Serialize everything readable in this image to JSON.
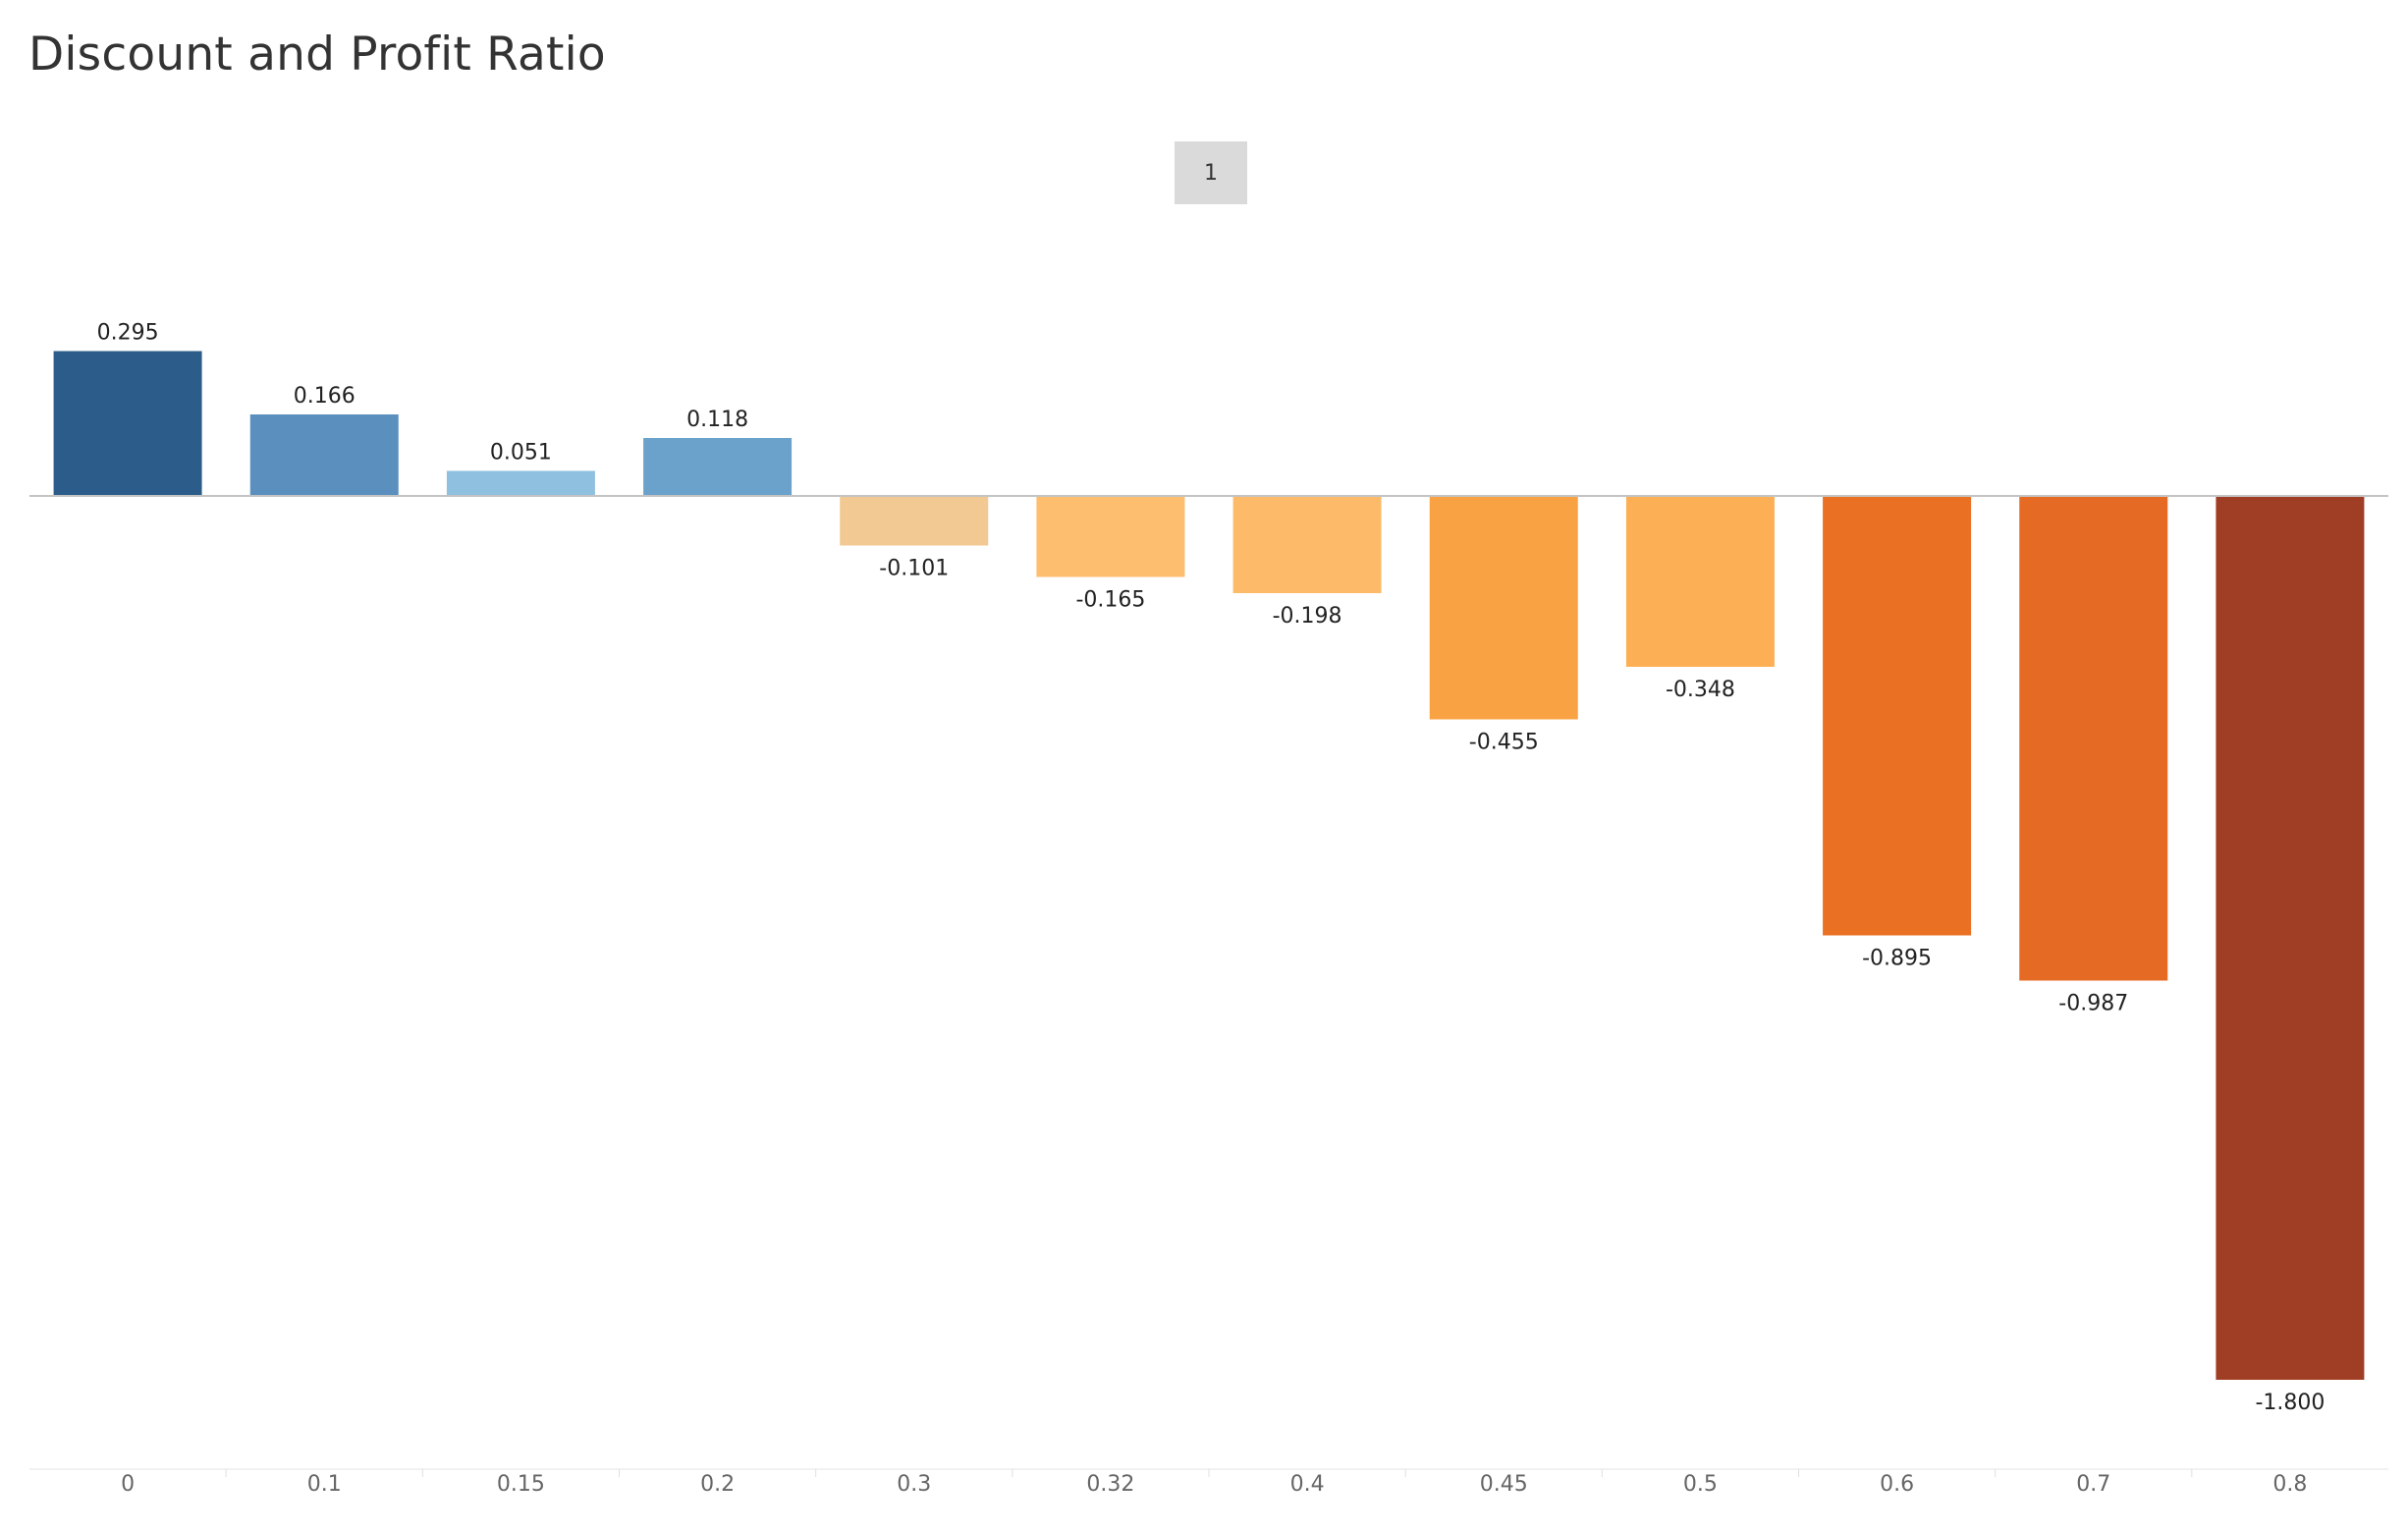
{
  "header": {
    "title": "Discount and Profit Ratio",
    "page_badge": "1"
  },
  "chart_data": {
    "type": "bar",
    "title": "Discount and Profit Ratio",
    "xlabel": "",
    "ylabel": "",
    "categories": [
      "0",
      "0.1",
      "0.15",
      "0.2",
      "0.3",
      "0.32",
      "0.4",
      "0.45",
      "0.5",
      "0.6",
      "0.7",
      "0.8"
    ],
    "values": [
      0.295,
      0.166,
      0.051,
      0.118,
      -0.101,
      -0.165,
      -0.198,
      -0.455,
      -0.348,
      -0.895,
      -0.987,
      -1.8
    ],
    "labels": [
      "0.295",
      "0.166",
      "0.051",
      "0.118",
      "-0.101",
      "-0.165",
      "-0.198",
      "-0.455",
      "-0.348",
      "-0.895",
      "-0.987",
      "-1.800"
    ],
    "colors": [
      "#2c5d8a",
      "#5b8fbe",
      "#90c0e0",
      "#6ba2cb",
      "#f2c893",
      "#fdbe6f",
      "#fdbb69",
      "#f9a244",
      "#fcaf55",
      "#ea7024",
      "#e56a23",
      "#a03d25"
    ],
    "ylim": [
      -1.8,
      0.295
    ],
    "grid": false,
    "legend": "none"
  }
}
